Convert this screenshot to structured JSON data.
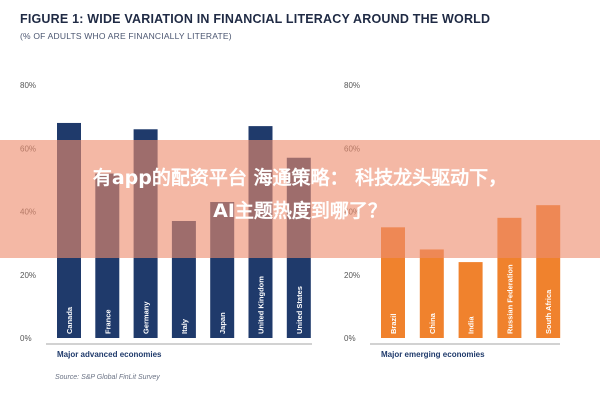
{
  "figure": {
    "title": "FIGURE 1: WIDE VARIATION IN FINANCIAL LITERACY AROUND THE WORLD",
    "subtitle": "(% OF ADULTS WHO ARE FINANCIALLY LITERATE)",
    "source": "Source: S&P Global FinLit Survey"
  },
  "overlay": {
    "line1": "有app的配资平台 海通策略： 科技龙头驱动下，",
    "line2": "AI主题热度到哪了？",
    "color": "#ee8c6e"
  },
  "chart_data": [
    {
      "type": "bar",
      "title": "",
      "xlabel": "Major advanced economies",
      "ylabel": "",
      "ylim": [
        0,
        80
      ],
      "yticks": [
        "0%",
        "20%",
        "40%",
        "60%",
        "80%"
      ],
      "categories": [
        "Canada",
        "France",
        "Germany",
        "Italy",
        "Japan",
        "United Kingdom",
        "United States"
      ],
      "values": [
        68,
        52,
        66,
        37,
        43,
        67,
        57
      ],
      "bar_color": "#1f3a6b",
      "grid": false
    },
    {
      "type": "bar",
      "title": "",
      "xlabel": "Major emerging economies",
      "ylabel": "",
      "ylim": [
        0,
        80
      ],
      "yticks": [
        "0%",
        "20%",
        "40%",
        "60%",
        "80%"
      ],
      "categories": [
        "Brazil",
        "China",
        "India",
        "Russian Federation",
        "South Africa"
      ],
      "values": [
        35,
        28,
        24,
        38,
        42
      ],
      "bar_color": "#f0822d",
      "grid": false
    }
  ]
}
